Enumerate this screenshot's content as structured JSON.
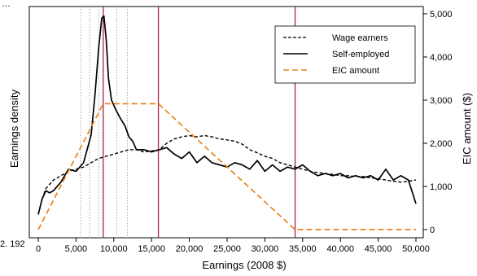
{
  "figure_fragments": {
    "top_left": "…",
    "bottom_left": "2. 192"
  },
  "chart_data": {
    "type": "line",
    "xlabel": "Earnings (2008 $)",
    "ylabel_left": "Earnings density",
    "ylabel_right": "EIC amount ($)",
    "xlim": [
      0,
      50000
    ],
    "ylim_right": [
      0,
      5000
    ],
    "x_ticks": [
      0,
      5000,
      10000,
      15000,
      20000,
      25000,
      30000,
      35000,
      40000,
      45000,
      50000
    ],
    "x_tick_labels": [
      "0",
      "5,000",
      "10,000",
      "15,000",
      "20,000",
      "25,000",
      "30,000",
      "35,000",
      "40,000",
      "45,000",
      "50,000"
    ],
    "right_ticks": [
      0,
      1000,
      2000,
      3000,
      4000,
      5000
    ],
    "right_tick_labels": [
      "0",
      "1,000",
      "2,000",
      "3,000",
      "4,000",
      "5,000"
    ],
    "left_axis_note": "density scale unlabeled; density values expressed on the right axis scale",
    "reference_lines_solid": [
      8600,
      15900,
      34000
    ],
    "reference_lines_dotted": [
      5600,
      6800,
      8000,
      10400,
      11800
    ],
    "legend_position": "top-right",
    "series": [
      {
        "name": "Wage earners",
        "style": "dashed",
        "color": "#000000",
        "x": [
          0,
          500,
          1000,
          2000,
          3000,
          4000,
          5000,
          6000,
          7000,
          8000,
          9000,
          10000,
          11000,
          12000,
          13000,
          14000,
          15000,
          16000,
          17000,
          18000,
          19000,
          20000,
          21000,
          22000,
          23000,
          24000,
          25000,
          26000,
          27000,
          28000,
          29000,
          30000,
          31000,
          32000,
          33000,
          34000,
          35000,
          36000,
          37000,
          38000,
          39000,
          40000,
          41000,
          42000,
          43000,
          44000,
          45000,
          46000,
          47000,
          48000,
          49000,
          50000
        ],
        "y": [
          350,
          700,
          950,
          1150,
          1250,
          1350,
          1400,
          1450,
          1550,
          1650,
          1700,
          1750,
          1800,
          1850,
          1850,
          1800,
          1820,
          1850,
          2000,
          2100,
          2150,
          2180,
          2150,
          2180,
          2150,
          2100,
          2080,
          2050,
          1980,
          1850,
          1780,
          1700,
          1650,
          1550,
          1500,
          1450,
          1400,
          1350,
          1320,
          1300,
          1280,
          1250,
          1250,
          1230,
          1230,
          1200,
          1180,
          1150,
          1120,
          1100,
          1120,
          1150
        ]
      },
      {
        "name": "Self-employed",
        "style": "solid",
        "color": "#000000",
        "x": [
          0,
          500,
          1000,
          1500,
          2000,
          3000,
          4000,
          5000,
          6000,
          7000,
          7500,
          8000,
          8400,
          8700,
          9000,
          9300,
          9700,
          10200,
          10800,
          11500,
          12000,
          12500,
          13000,
          14000,
          15000,
          16000,
          17000,
          18000,
          19000,
          20000,
          21000,
          22000,
          23000,
          24000,
          25000,
          26000,
          27000,
          28000,
          29000,
          30000,
          31000,
          32000,
          33000,
          34000,
          35000,
          36000,
          37000,
          38000,
          39000,
          40000,
          41000,
          42000,
          43000,
          44000,
          45000,
          46000,
          47000,
          48000,
          49000,
          50000
        ],
        "y": [
          350,
          700,
          900,
          850,
          900,
          1100,
          1400,
          1350,
          1550,
          2200,
          3100,
          4200,
          4900,
          4950,
          4400,
          3500,
          3000,
          2800,
          2600,
          2400,
          2150,
          2050,
          1850,
          1850,
          1800,
          1850,
          1900,
          1750,
          1650,
          1800,
          1550,
          1700,
          1550,
          1500,
          1450,
          1550,
          1500,
          1400,
          1600,
          1350,
          1500,
          1350,
          1450,
          1400,
          1500,
          1350,
          1250,
          1300,
          1250,
          1300,
          1200,
          1250,
          1200,
          1250,
          1150,
          1400,
          1150,
          1250,
          1150,
          600
        ]
      },
      {
        "name": "EIC amount",
        "style": "dashed",
        "color": "#E8831F",
        "axis": "right",
        "x": [
          0,
          8600,
          15900,
          34000,
          50000
        ],
        "y": [
          0,
          2917,
          2917,
          0,
          0
        ]
      }
    ]
  }
}
